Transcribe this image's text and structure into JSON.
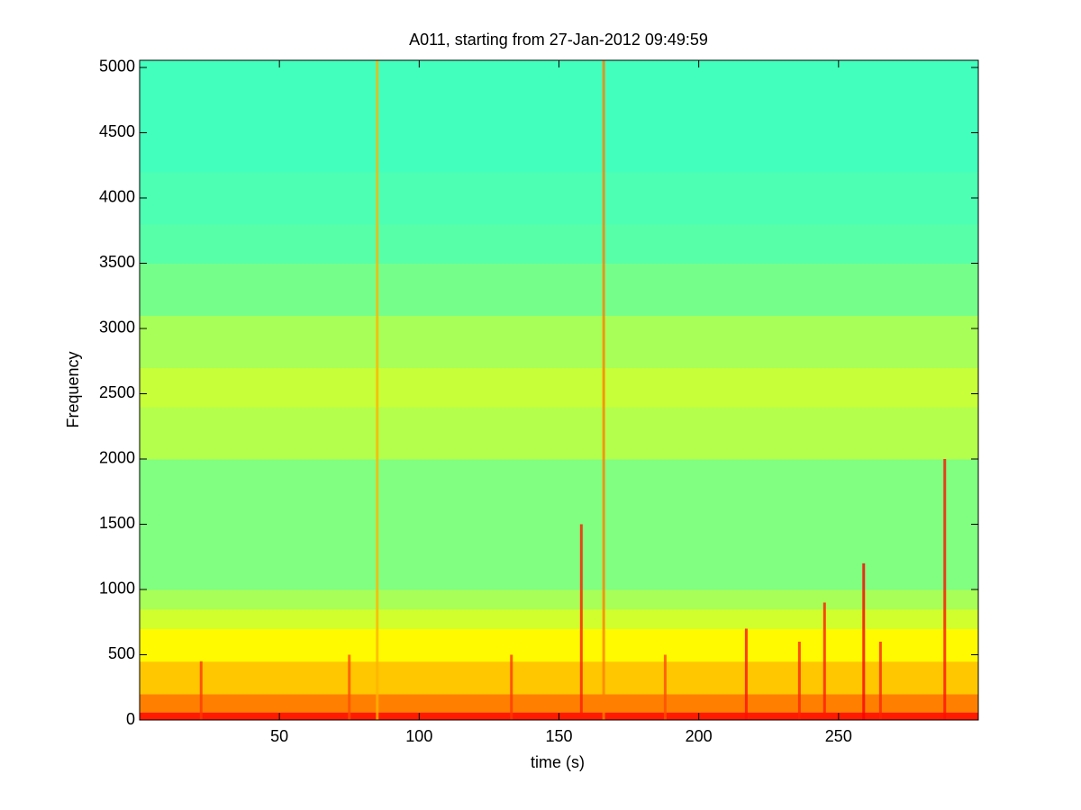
{
  "chart_data": {
    "type": "spectrogram",
    "title": "A011, starting from 27-Jan-2012 09:49:59",
    "x_label": "time (s)",
    "y_label": "Frequency",
    "xlim": [
      0,
      300
    ],
    "ylim": [
      0,
      5055
    ],
    "xticks": [
      50,
      100,
      150,
      200,
      250
    ],
    "yticks": [
      0,
      500,
      1000,
      1500,
      2000,
      2500,
      3000,
      3500,
      4000,
      4500,
      5000
    ],
    "colormap": "jet",
    "ybins": [
      0,
      60,
      200,
      450,
      700,
      850,
      1000,
      1500,
      2000,
      2400,
      2700,
      3100,
      3500,
      3800,
      4200,
      5055
    ],
    "levels": [
      0.85,
      0.75,
      0.68,
      0.63,
      0.58,
      0.54,
      0.5,
      0.5,
      0.55,
      0.57,
      0.54,
      0.49,
      0.46,
      0.45,
      0.44
    ],
    "bursts": [
      {
        "x": 22,
        "top": 450,
        "level": 0.82
      },
      {
        "x": 75,
        "top": 500,
        "level": 0.8
      },
      {
        "x": 85,
        "top": 5055,
        "level": 0.7
      },
      {
        "x": 133,
        "top": 500,
        "level": 0.82
      },
      {
        "x": 158,
        "top": 1500,
        "level": 0.85
      },
      {
        "x": 166,
        "top": 5055,
        "level": 0.75
      },
      {
        "x": 188,
        "top": 500,
        "level": 0.8
      },
      {
        "x": 217,
        "top": 700,
        "level": 0.86
      },
      {
        "x": 236,
        "top": 600,
        "level": 0.84
      },
      {
        "x": 245,
        "top": 900,
        "level": 0.85
      },
      {
        "x": 259,
        "top": 1200,
        "level": 0.88
      },
      {
        "x": 265,
        "top": 600,
        "level": 0.84
      },
      {
        "x": 288,
        "top": 2000,
        "level": 0.86
      }
    ]
  }
}
